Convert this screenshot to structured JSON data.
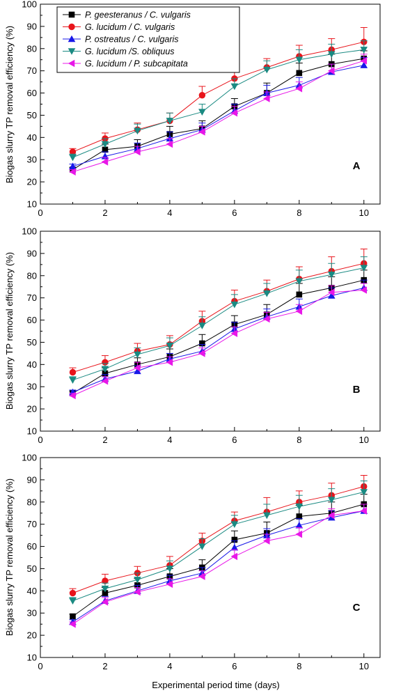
{
  "figure": {
    "xlabel": "Experimental period time (days)",
    "ylabel": "Biogas slurry TP removal efficiency (%)"
  },
  "series_styles": [
    {
      "name": "P. geesteranus / C. vulgaris",
      "color": "#000000",
      "marker": "square"
    },
    {
      "name": "G. lucidum / C. vulgaris",
      "color": "#e8141b",
      "marker": "circle"
    },
    {
      "name": "P. ostreatus / C. vulgaris",
      "color": "#1818e8",
      "marker": "triangle-up"
    },
    {
      "name": "G. lucidum /S. obliquus",
      "color": "#1a8a82",
      "marker": "triangle-down"
    },
    {
      "name": "G. lucidum / P. subcapitata",
      "color": "#e817e8",
      "marker": "triangle-left"
    }
  ],
  "chart_data": [
    {
      "type": "line",
      "panel": "A",
      "xlim": [
        0,
        10.5
      ],
      "ylim": [
        10,
        100
      ],
      "x_ticks": [
        0,
        2,
        4,
        6,
        8,
        10
      ],
      "y_ticks": [
        10,
        20,
        30,
        40,
        50,
        60,
        70,
        80,
        90,
        100
      ],
      "legend_position": "top-left",
      "x": [
        1,
        2,
        3,
        4,
        5,
        6,
        7,
        8,
        9,
        10
      ],
      "series": [
        {
          "name": "P. geesteranus / C. vulgaris",
          "values": [
            25.5,
            34.5,
            36,
            41.5,
            44,
            54,
            60,
            69,
            73,
            75.5
          ],
          "errors": [
            1,
            2.5,
            3,
            3.5,
            3.5,
            3.5,
            4.5,
            4.5,
            4.5,
            3.5
          ]
        },
        {
          "name": "G. lucidum / C. vulgaris",
          "values": [
            33.5,
            39.5,
            43.5,
            47.5,
            59,
            66.5,
            71.5,
            76.5,
            79.5,
            83
          ],
          "errors": [
            1.5,
            2.5,
            3,
            3.5,
            4,
            4,
            4,
            5,
            5,
            6.5
          ]
        },
        {
          "name": "P. ostreatus / C. vulgaris",
          "values": [
            27,
            31.5,
            35,
            39.5,
            43.5,
            52,
            60,
            63.5,
            69.5,
            72.5
          ],
          "errors": [
            1,
            2,
            2.5,
            3,
            3,
            3,
            3.5,
            3.5,
            3.5,
            3.5
          ]
        },
        {
          "name": "G. lucidum /S. obliquus",
          "values": [
            31,
            37,
            43,
            47.5,
            51.5,
            63,
            70.5,
            75,
            77.5,
            79.5
          ],
          "errors": [
            1.5,
            2.5,
            3,
            3.5,
            3.5,
            3.5,
            4,
            4.5,
            4.5,
            4
          ]
        },
        {
          "name": "G. lucidum / P. subcapitata",
          "values": [
            24.5,
            29,
            33.5,
            37,
            42.5,
            51,
            57.5,
            62,
            70,
            74.5
          ],
          "errors": [
            1,
            2,
            2.5,
            2.5,
            2.5,
            3,
            3,
            3,
            3,
            3
          ]
        }
      ]
    },
    {
      "type": "line",
      "panel": "B",
      "xlim": [
        0,
        10.5
      ],
      "ylim": [
        10,
        100
      ],
      "x_ticks": [
        0,
        2,
        4,
        6,
        8,
        10
      ],
      "y_ticks": [
        10,
        20,
        30,
        40,
        50,
        60,
        70,
        80,
        90,
        100
      ],
      "x": [
        1,
        2,
        3,
        4,
        5,
        6,
        7,
        8,
        9,
        10
      ],
      "series": [
        {
          "name": "P. geesteranus / C. vulgaris",
          "values": [
            27,
            36,
            40,
            43.5,
            49.5,
            58,
            62.5,
            71.5,
            74.5,
            78
          ],
          "errors": [
            1,
            2.5,
            3,
            3.5,
            4,
            4,
            4.5,
            5,
            5,
            4.5
          ]
        },
        {
          "name": "G. lucidum / C. vulgaris",
          "values": [
            36.5,
            41,
            46,
            49,
            59.5,
            68.5,
            73,
            78.5,
            82,
            85.5
          ],
          "errors": [
            2,
            3,
            3.5,
            4,
            4.5,
            5,
            5,
            5.5,
            6.5,
            6.5
          ]
        },
        {
          "name": "P. ostreatus / C. vulgaris",
          "values": [
            27.5,
            33.5,
            37,
            42.5,
            46,
            56,
            61.5,
            66,
            71,
            74.5
          ],
          "errors": [
            1,
            2,
            2.5,
            2.5,
            3,
            3,
            3.5,
            3.5,
            3.5,
            3.5
          ]
        },
        {
          "name": "G. lucidum /S. obliquus",
          "values": [
            33,
            38,
            44.5,
            48.5,
            57.5,
            67,
            72,
            77.5,
            80.5,
            83.5
          ],
          "errors": [
            1.5,
            2.5,
            3,
            3.5,
            4,
            4.5,
            4.5,
            5,
            5,
            5
          ]
        },
        {
          "name": "G. lucidum / P. subcapitata",
          "values": [
            26,
            32.5,
            38.5,
            41,
            45,
            54,
            60.5,
            64,
            72.5,
            73.5
          ],
          "errors": [
            1,
            2,
            2.5,
            2.5,
            2.5,
            3,
            3,
            3,
            3,
            3
          ]
        }
      ]
    },
    {
      "type": "line",
      "panel": "C",
      "xlim": [
        0,
        10.5
      ],
      "ylim": [
        10,
        100
      ],
      "x_ticks": [
        0,
        2,
        4,
        6,
        8,
        10
      ],
      "y_ticks": [
        10,
        20,
        30,
        40,
        50,
        60,
        70,
        80,
        90,
        100
      ],
      "x": [
        1,
        2,
        3,
        4,
        5,
        6,
        7,
        8,
        9,
        10
      ],
      "series": [
        {
          "name": "P. geesteranus / C. vulgaris",
          "values": [
            28.5,
            39,
            42.5,
            46.5,
            50.5,
            63,
            66,
            73.5,
            75,
            79
          ],
          "errors": [
            1,
            2.5,
            3,
            3.5,
            3.5,
            4,
            5,
            5,
            5,
            4.5
          ]
        },
        {
          "name": "G. lucidum / C. vulgaris",
          "values": [
            39,
            44.5,
            48,
            51.5,
            62.5,
            71.5,
            75.5,
            80,
            83,
            87
          ],
          "errors": [
            2,
            3,
            3,
            4,
            3.5,
            4,
            6.5,
            5,
            5.5,
            5
          ]
        },
        {
          "name": "P. ostreatus / C. vulgaris",
          "values": [
            26,
            35.5,
            40,
            44.5,
            48,
            59.5,
            65,
            69.5,
            73,
            76
          ],
          "errors": [
            1,
            2,
            2.5,
            2.5,
            2.5,
            3,
            3,
            3,
            3,
            3
          ]
        },
        {
          "name": "G. lucidum /S. obliquus",
          "values": [
            35.5,
            41,
            45,
            50,
            60,
            70,
            74,
            78,
            81,
            84.5
          ],
          "errors": [
            1.5,
            2.5,
            3,
            3.5,
            3.5,
            4,
            5,
            5,
            5,
            5
          ]
        },
        {
          "name": "G. lucidum / P. subcapitata",
          "values": [
            25,
            35,
            39.5,
            43,
            46.5,
            55.5,
            62.5,
            65.5,
            74,
            76
          ],
          "errors": [
            1,
            2,
            2,
            2.5,
            2.5,
            3,
            3,
            3,
            3,
            3
          ]
        }
      ]
    }
  ]
}
